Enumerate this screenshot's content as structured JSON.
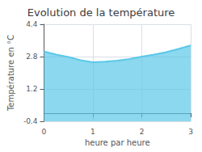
{
  "chart_data": {
    "type": "area",
    "title": "Evolution de la température",
    "xlabel": "heure par heure",
    "ylabel": "Température en °C",
    "x": [
      0,
      0.25,
      0.5,
      0.75,
      1.0,
      1.25,
      1.5,
      1.75,
      2.0,
      2.25,
      2.5,
      2.75,
      3.0
    ],
    "values": [
      3.05,
      2.9,
      2.78,
      2.62,
      2.52,
      2.55,
      2.6,
      2.68,
      2.8,
      2.9,
      3.02,
      3.18,
      3.35
    ],
    "color": "#5bc8e8",
    "xlim": [
      0,
      3
    ],
    "ylim": [
      -0.4,
      4.4
    ],
    "xticks": [
      0,
      1,
      2,
      3
    ],
    "yticks": [
      -0.4,
      1.2,
      2.8,
      4.4
    ],
    "grid": true
  }
}
